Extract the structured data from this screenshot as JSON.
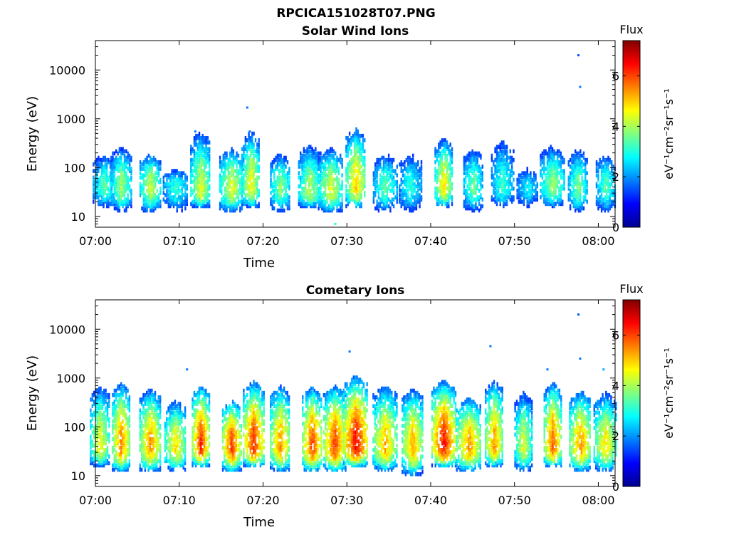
{
  "figure": {
    "title": "RPCICA151028T07.PNG"
  },
  "colors": {
    "colormap": [
      "#00008f",
      "#0000ff",
      "#0080ff",
      "#00ffff",
      "#80ff80",
      "#ffff00",
      "#ff8000",
      "#ff0000",
      "#800000"
    ]
  },
  "chart_data": [
    {
      "type": "heatmap",
      "title": "Solar Wind Ions",
      "xlabel": "Time",
      "ylabel": "Energy (eV)",
      "x_ticks": [
        "07:00",
        "07:10",
        "07:20",
        "07:30",
        "07:40",
        "07:50",
        "08:00"
      ],
      "y_ticks": [
        "10",
        "100",
        "1000",
        "10000"
      ],
      "y_scale": "log",
      "xlim": [
        "07:00",
        "08:02"
      ],
      "ylim": [
        6,
        40000
      ],
      "colorbar": {
        "title": "Flux",
        "label": "eV⁻¹cm⁻²sr⁻¹s⁻¹",
        "ticks": [
          "0",
          "2",
          "4",
          "6"
        ],
        "range": [
          0,
          7.4
        ]
      },
      "bursts": [
        {
          "t": 1.0,
          "e_low": 15,
          "e_peak": 40,
          "e_high": 200,
          "flux": 3.8
        },
        {
          "t": 3.0,
          "e_low": 12,
          "e_peak": 40,
          "e_high": 280,
          "flux": 4.3
        },
        {
          "t": 6.5,
          "e_low": 12,
          "e_peak": 40,
          "e_high": 200,
          "flux": 4.6
        },
        {
          "t": 9.5,
          "e_low": 12,
          "e_peak": 40,
          "e_high": 100,
          "flux": 3.5
        },
        {
          "t": 12.5,
          "e_low": 15,
          "e_peak": 30,
          "e_high": 550,
          "flux": 4.8
        },
        {
          "t": 16.2,
          "e_low": 12,
          "e_peak": 40,
          "e_high": 250,
          "flux": 4.8
        },
        {
          "t": 18.5,
          "e_low": 15,
          "e_peak": 40,
          "e_high": 550,
          "flux": 5.0
        },
        {
          "t": 22.0,
          "e_low": 12,
          "e_peak": 40,
          "e_high": 200,
          "flux": 4.2
        },
        {
          "t": 25.5,
          "e_low": 15,
          "e_peak": 30,
          "e_high": 300,
          "flux": 4.5
        },
        {
          "t": 28.0,
          "e_low": 12,
          "e_peak": 35,
          "e_high": 250,
          "flux": 4.8
        },
        {
          "t": 31.0,
          "e_low": 15,
          "e_peak": 40,
          "e_high": 650,
          "flux": 5.4
        },
        {
          "t": 34.5,
          "e_low": 12,
          "e_peak": 40,
          "e_high": 200,
          "flux": 3.8
        },
        {
          "t": 37.5,
          "e_low": 12,
          "e_peak": 40,
          "e_high": 200,
          "flux": 3.5
        },
        {
          "t": 41.5,
          "e_low": 15,
          "e_peak": 40,
          "e_high": 400,
          "flux": 5.2
        },
        {
          "t": 45.0,
          "e_low": 12,
          "e_peak": 40,
          "e_high": 250,
          "flux": 4.0
        },
        {
          "t": 48.5,
          "e_low": 15,
          "e_peak": 40,
          "e_high": 400,
          "flux": 3.6
        },
        {
          "t": 51.5,
          "e_low": 15,
          "e_peak": 40,
          "e_high": 100,
          "flux": 3.2
        },
        {
          "t": 54.5,
          "e_low": 15,
          "e_peak": 40,
          "e_high": 300,
          "flux": 4.2
        },
        {
          "t": 57.5,
          "e_low": 12,
          "e_peak": 40,
          "e_high": 250,
          "flux": 4.0
        },
        {
          "t": 60.8,
          "e_low": 12,
          "e_peak": 40,
          "e_high": 200,
          "flux": 3.8
        }
      ],
      "sparse_points": [
        {
          "t": 57.5,
          "e": 20000,
          "flux": 1.5
        },
        {
          "t": 57.7,
          "e": 4500,
          "flux": 1.8
        },
        {
          "t": 18.0,
          "e": 1700,
          "flux": 1.8
        },
        {
          "t": 18.3,
          "e": 550,
          "flux": 1.8
        },
        {
          "t": 11.8,
          "e": 550,
          "flux": 1.8
        },
        {
          "t": 28.5,
          "e": 7,
          "flux": 3.0
        }
      ]
    },
    {
      "type": "heatmap",
      "title": "Cometary Ions",
      "xlabel": "Time",
      "ylabel": "Energy (eV)",
      "x_ticks": [
        "07:00",
        "07:10",
        "07:20",
        "07:30",
        "07:40",
        "07:50",
        "08:00"
      ],
      "y_ticks": [
        "10",
        "100",
        "1000",
        "10000"
      ],
      "y_scale": "log",
      "xlim": [
        "07:00",
        "08:02"
      ],
      "ylim": [
        6,
        40000
      ],
      "colorbar": {
        "title": "Flux",
        "label": "eV⁻¹cm⁻²sr⁻¹s⁻¹",
        "ticks": [
          "0",
          "2",
          "4",
          "6"
        ],
        "range": [
          0,
          7.4
        ]
      },
      "bursts": [
        {
          "t": 0.5,
          "e_low": 15,
          "e_peak": 40,
          "e_high": 700,
          "flux": 5.0
        },
        {
          "t": 3.0,
          "e_low": 12,
          "e_peak": 40,
          "e_high": 800,
          "flux": 6.0
        },
        {
          "t": 6.5,
          "e_low": 12,
          "e_peak": 40,
          "e_high": 600,
          "flux": 5.8
        },
        {
          "t": 9.5,
          "e_low": 12,
          "e_peak": 40,
          "e_high": 350,
          "flux": 5.2
        },
        {
          "t": 12.5,
          "e_low": 15,
          "e_peak": 40,
          "e_high": 700,
          "flux": 6.6
        },
        {
          "t": 16.2,
          "e_low": 12,
          "e_peak": 40,
          "e_high": 350,
          "flux": 6.5
        },
        {
          "t": 18.8,
          "e_low": 15,
          "e_peak": 40,
          "e_high": 850,
          "flux": 6.6
        },
        {
          "t": 22.0,
          "e_low": 12,
          "e_peak": 40,
          "e_high": 700,
          "flux": 5.8
        },
        {
          "t": 25.8,
          "e_low": 12,
          "e_peak": 40,
          "e_high": 650,
          "flux": 6.4
        },
        {
          "t": 28.5,
          "e_low": 12,
          "e_peak": 40,
          "e_high": 700,
          "flux": 6.4
        },
        {
          "t": 31.0,
          "e_low": 15,
          "e_peak": 40,
          "e_high": 1100,
          "flux": 6.9
        },
        {
          "t": 34.5,
          "e_low": 12,
          "e_peak": 40,
          "e_high": 700,
          "flux": 5.6
        },
        {
          "t": 37.8,
          "e_low": 10,
          "e_peak": 40,
          "e_high": 600,
          "flux": 5.6
        },
        {
          "t": 41.5,
          "e_low": 15,
          "e_peak": 40,
          "e_high": 900,
          "flux": 6.8
        },
        {
          "t": 44.5,
          "e_low": 12,
          "e_peak": 40,
          "e_high": 400,
          "flux": 5.8
        },
        {
          "t": 47.5,
          "e_low": 15,
          "e_peak": 40,
          "e_high": 900,
          "flux": 5.8
        },
        {
          "t": 51.0,
          "e_low": 12,
          "e_peak": 40,
          "e_high": 500,
          "flux": 4.8
        },
        {
          "t": 54.5,
          "e_low": 15,
          "e_peak": 40,
          "e_high": 800,
          "flux": 6.2
        },
        {
          "t": 57.8,
          "e_low": 12,
          "e_peak": 40,
          "e_high": 550,
          "flux": 5.8
        },
        {
          "t": 60.8,
          "e_low": 12,
          "e_peak": 40,
          "e_high": 500,
          "flux": 5.2
        }
      ],
      "sparse_points": [
        {
          "t": 57.5,
          "e": 20000,
          "flux": 1.5
        },
        {
          "t": 57.7,
          "e": 2500,
          "flux": 1.8
        },
        {
          "t": 30.2,
          "e": 3500,
          "flux": 1.8
        },
        {
          "t": 47.0,
          "e": 4500,
          "flux": 1.8
        },
        {
          "t": 10.8,
          "e": 1500,
          "flux": 1.8
        },
        {
          "t": 53.8,
          "e": 1500,
          "flux": 1.8
        },
        {
          "t": 60.5,
          "e": 1500,
          "flux": 2.2
        }
      ]
    }
  ]
}
